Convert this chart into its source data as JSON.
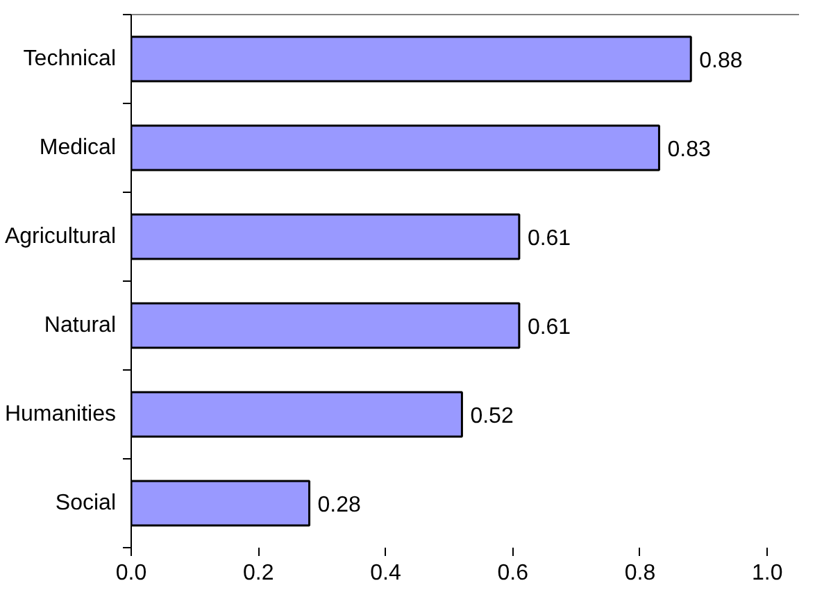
{
  "chart_data": {
    "type": "bar",
    "orientation": "horizontal",
    "categories": [
      "Technical",
      "Medical",
      "Agricultural",
      "Natural",
      "Humanities",
      "Social"
    ],
    "values": [
      0.88,
      0.83,
      0.61,
      0.61,
      0.52,
      0.28
    ],
    "color": "#9999ff",
    "xlim": [
      0,
      1.05
    ],
    "xticks": [
      {
        "value": 0,
        "label": "0.0"
      },
      {
        "value": 0.2,
        "label": "0.2"
      },
      {
        "value": 0.4,
        "label": "0.4"
      },
      {
        "value": 0.6,
        "label": "0.6"
      },
      {
        "value": 0.8,
        "label": "0.8"
      },
      {
        "value": 1.0,
        "label": "1.0"
      }
    ],
    "data_labels": true,
    "grid": false
  }
}
